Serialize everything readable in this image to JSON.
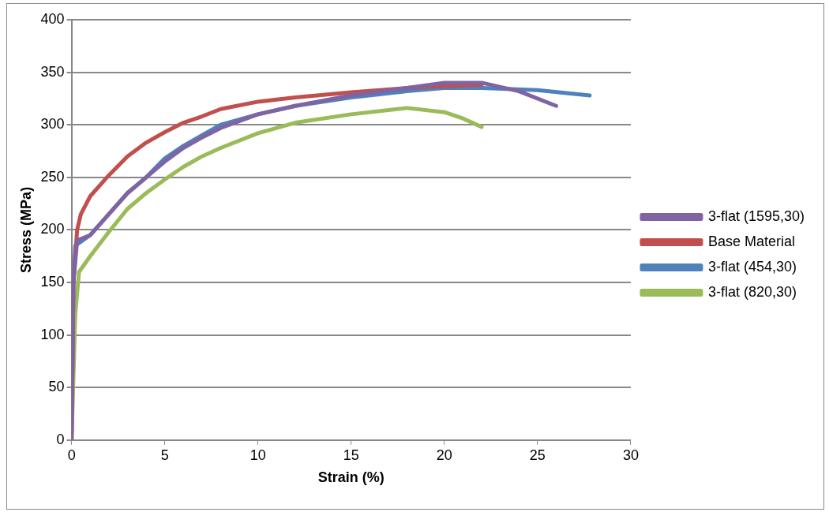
{
  "chart_data": {
    "type": "line",
    "xlabel": "Strain (%)",
    "ylabel": "Stress (MPa)",
    "xlim": [
      0,
      30
    ],
    "xticks": [
      0,
      5,
      10,
      15,
      20,
      25,
      30
    ],
    "ylim": [
      0,
      400
    ],
    "yticks": [
      0,
      50,
      100,
      150,
      200,
      250,
      300,
      350,
      400
    ],
    "grid": "y",
    "legend": "right",
    "marker": "none",
    "series": [
      {
        "name": "3-flat (1595,30)",
        "color": "#8064a2",
        "x": [
          0,
          0.1,
          0.3,
          1,
          2,
          3,
          4,
          5,
          6,
          7,
          8,
          10,
          12,
          15,
          18,
          20,
          22,
          24,
          26
        ],
        "values": [
          0,
          150,
          190,
          195,
          215,
          235,
          250,
          265,
          278,
          288,
          297,
          310,
          318,
          328,
          335,
          340,
          340,
          332,
          318
        ]
      },
      {
        "name": "Base Material",
        "color": "#c0504d",
        "x": [
          0,
          0.1,
          0.3,
          0.5,
          1,
          2,
          3,
          4,
          5,
          6,
          7,
          8,
          10,
          12,
          15,
          18,
          20,
          22
        ],
        "values": [
          0,
          150,
          200,
          215,
          232,
          252,
          270,
          283,
          293,
          302,
          308,
          315,
          322,
          326,
          331,
          335,
          337,
          338
        ]
      },
      {
        "name": "3-flat (454,30)",
        "color": "#4f81bd",
        "x": [
          0,
          0.1,
          0.2,
          1,
          2,
          3,
          4,
          5,
          6,
          7,
          8,
          10,
          12,
          15,
          18,
          20,
          22,
          25,
          27.8
        ],
        "values": [
          0,
          150,
          185,
          195,
          215,
          235,
          250,
          268,
          280,
          290,
          300,
          310,
          318,
          326,
          332,
          335,
          335,
          333,
          328
        ]
      },
      {
        "name": "3-flat (820,30)",
        "color": "#9bbb59",
        "x": [
          0,
          0.2,
          0.4,
          1,
          2,
          3,
          4,
          5,
          6,
          7,
          8,
          10,
          12,
          15,
          18,
          20,
          21,
          22
        ],
        "values": [
          0,
          120,
          160,
          175,
          198,
          220,
          235,
          248,
          260,
          270,
          278,
          292,
          302,
          310,
          316,
          312,
          306,
          298
        ]
      }
    ]
  }
}
